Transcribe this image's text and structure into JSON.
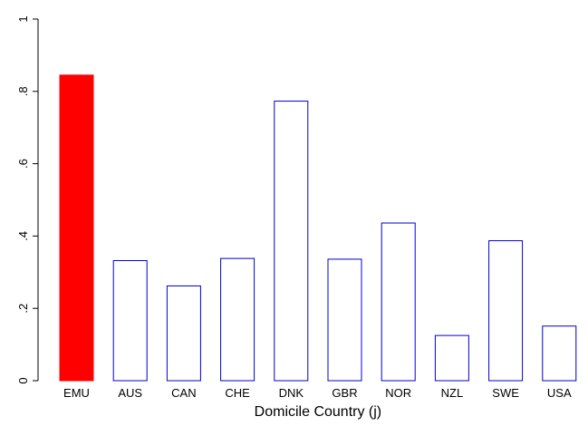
{
  "chart_data": {
    "type": "bar",
    "title": "",
    "xlabel": "Domicile Country (j)",
    "ylabel": "",
    "categories": [
      "EMU",
      "AUS",
      "CAN",
      "CHE",
      "DNK",
      "GBR",
      "NOR",
      "NZL",
      "SWE",
      "USA"
    ],
    "values": [
      0.845,
      0.332,
      0.262,
      0.338,
      0.773,
      0.336,
      0.436,
      0.125,
      0.387,
      0.151
    ],
    "highlight_category": "EMU",
    "ylim": [
      0,
      1
    ],
    "yticks": [
      0,
      0.2,
      0.4,
      0.6,
      0.8,
      1
    ],
    "ytick_labels": [
      "0",
      ".2",
      ".4",
      ".6",
      ".8",
      "1"
    ],
    "grid": false,
    "legend": "none",
    "colors": {
      "highlight_fill": "#ff0000",
      "highlight_stroke": "#ff0000",
      "bar_fill": "#ffffff",
      "bar_stroke": "#0000cc",
      "axis": "#000000"
    }
  }
}
